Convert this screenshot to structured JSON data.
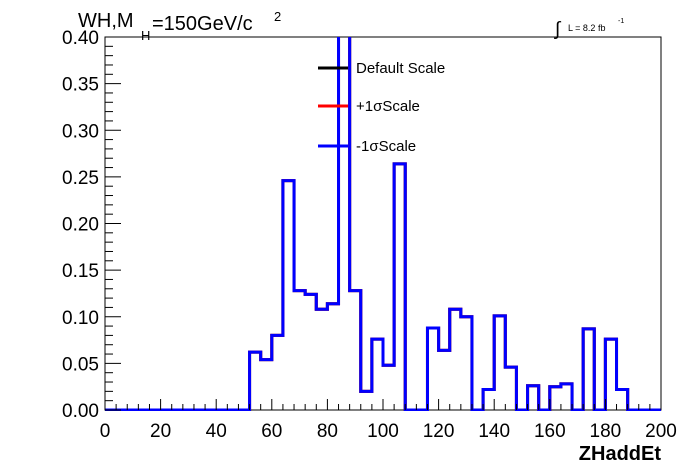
{
  "title": {
    "prefix": "WH,M",
    "subscript": "H",
    "value": "=150GeV/c",
    "superscript": "2"
  },
  "lumi": {
    "integral": "∫",
    "text": "L = 8.2 fb",
    "superscript": "-1"
  },
  "chart_data": {
    "type": "line",
    "xlabel": "ZHaddEt",
    "ylabel": "",
    "xlim": [
      0,
      200
    ],
    "ylim": [
      0,
      0.4
    ],
    "x_ticks": [
      "0",
      "20",
      "40",
      "60",
      "80",
      "100",
      "120",
      "140",
      "160",
      "180",
      "200"
    ],
    "y_ticks": [
      "0.00",
      "0.05",
      "0.10",
      "0.15",
      "0.20",
      "0.25",
      "0.30",
      "0.35",
      "0.40"
    ],
    "grid": false,
    "legend_position": "top-center",
    "bin_edges": [
      0,
      4,
      8,
      12,
      16,
      20,
      24,
      28,
      32,
      36,
      40,
      44,
      48,
      52,
      56,
      60,
      64,
      68,
      72,
      76,
      80,
      84,
      88,
      92,
      96,
      100,
      104,
      108,
      112,
      116,
      120,
      124,
      128,
      132,
      136,
      140,
      144,
      148,
      152,
      156,
      160,
      164,
      168,
      172,
      176,
      180,
      184,
      188,
      192,
      196,
      200
    ],
    "series": [
      {
        "name": "Default Scale",
        "color": "#000000",
        "values": [
          0,
          0,
          0,
          0,
          0,
          0,
          0,
          0,
          0,
          0,
          0,
          0,
          0,
          0.062,
          0.054,
          0.08,
          0.246,
          0.128,
          0.124,
          0.108,
          0.114,
          0.42,
          0.128,
          0.02,
          0.076,
          0.048,
          0.264,
          0,
          0,
          0.088,
          0.064,
          0.108,
          0.1,
          0,
          0.022,
          0.101,
          0.046,
          0,
          0.026,
          0,
          0.025,
          0.028,
          0,
          0.087,
          0,
          0.076,
          0.022,
          0,
          0,
          0
        ]
      },
      {
        "name": "+1σScale",
        "color": "#ff0000",
        "values": [
          0,
          0,
          0,
          0,
          0,
          0,
          0,
          0,
          0,
          0,
          0,
          0,
          0,
          0.062,
          0.054,
          0.08,
          0.246,
          0.128,
          0.124,
          0.108,
          0.114,
          0.42,
          0.128,
          0.02,
          0.076,
          0.048,
          0.264,
          0,
          0,
          0.088,
          0.064,
          0.108,
          0.1,
          0,
          0.022,
          0.101,
          0.046,
          0,
          0.026,
          0,
          0.025,
          0.028,
          0,
          0.087,
          0,
          0.076,
          0.022,
          0,
          0,
          0
        ]
      },
      {
        "name": "-1σScale",
        "color": "#0000ff",
        "values": [
          0,
          0,
          0,
          0,
          0,
          0,
          0,
          0,
          0,
          0,
          0,
          0,
          0,
          0.062,
          0.054,
          0.08,
          0.246,
          0.128,
          0.124,
          0.108,
          0.114,
          0.42,
          0.128,
          0.02,
          0.076,
          0.048,
          0.264,
          0,
          0,
          0.088,
          0.064,
          0.108,
          0.1,
          0,
          0.022,
          0.101,
          0.046,
          0,
          0.026,
          0,
          0.025,
          0.028,
          0,
          0.087,
          0,
          0.076,
          0.022,
          0,
          0,
          0
        ]
      }
    ]
  }
}
